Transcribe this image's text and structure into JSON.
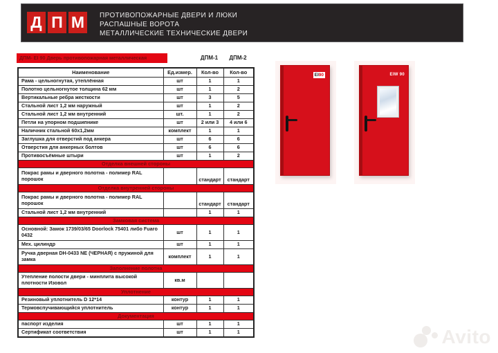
{
  "header": {
    "logo_letters": [
      "Д",
      "П",
      "М"
    ],
    "tagline_lines": [
      "ПРОТИВОПОЖАРНЫЕ ДВЕРИ И ЛЮКИ",
      "РАСПАШНЫЕ ВОРОТА",
      "МЕТАЛЛИЧЕСКИЕ ТЕХНИЧЕСКИЕ ДВЕРИ"
    ]
  },
  "title": {
    "text": "ДПМ- EI 90  Дверь противопожарная металлическая",
    "variant_labels": [
      "ДПМ-1",
      "ДПМ-2"
    ]
  },
  "table": {
    "columns": [
      "Наименование",
      "Ед.измер.",
      "Кол-во",
      "Кол-во"
    ],
    "rows": [
      {
        "type": "item",
        "name": "Рама - цельногнутая, утеплённая",
        "unit": "шт",
        "q1": "1",
        "q2": "1"
      },
      {
        "type": "item",
        "name": "Полотно цельногнутое толщина 62 мм",
        "unit": "шт",
        "q1": "1",
        "q2": "2"
      },
      {
        "type": "item",
        "name": "Вертикальные ребра жесткости",
        "unit": "шт",
        "q1": "3",
        "q2": "5"
      },
      {
        "type": "item",
        "name": "Стальной лист 1,2 мм наружный",
        "unit": "шт",
        "q1": "1",
        "q2": "2"
      },
      {
        "type": "item",
        "name": "Стальной лист 1,2 мм внутренний",
        "unit": "шт.",
        "q1": "1",
        "q2": "2"
      },
      {
        "type": "item",
        "name": "Петли на упорном подшипнике",
        "unit": "шт",
        "q1": "2 или 3",
        "q2": "4 или 6"
      },
      {
        "type": "item",
        "name": "Наличник стальной 60х1,2мм",
        "unit": "комплект",
        "q1": "1",
        "q2": "1"
      },
      {
        "type": "item",
        "name": "Заглушка для отверстий под анкера",
        "unit": "шт",
        "q1": "6",
        "q2": "6"
      },
      {
        "type": "item",
        "name": "Отверстия для анкерных болтов",
        "unit": "шт",
        "q1": "6",
        "q2": "6"
      },
      {
        "type": "item",
        "name": "Противосъёмные штыри",
        "unit": "шт",
        "q1": "1",
        "q2": "2"
      },
      {
        "type": "section",
        "label": "Отделка внешней стороны"
      },
      {
        "type": "item",
        "tall": true,
        "vb": true,
        "name": "Покрас рамы и дверного полотна - полимер RAL порошок",
        "unit": "",
        "q1": "стандарт",
        "q2": "стандарт"
      },
      {
        "type": "section",
        "label": "Отделка внутренней стороны"
      },
      {
        "type": "item",
        "tall": true,
        "vb": true,
        "name": "Покрас рамы и дверного полотна - полимер RAL порошок",
        "unit": "",
        "q1": "стандарт",
        "q2": "стандарт"
      },
      {
        "type": "item",
        "name": "Стальной лист 1,2 мм внутренний",
        "unit": "",
        "q1": "1",
        "q2": "1"
      },
      {
        "type": "section",
        "label": "Замковая система"
      },
      {
        "type": "item",
        "tall": true,
        "name": "Основной:  Замок 1739/03/65 Doorlock 75401 либо Fuaro 0432",
        "unit": "шт",
        "q1": "1",
        "q2": "1"
      },
      {
        "type": "item",
        "name": "Мех. цилиндр",
        "unit": "шт",
        "q1": "1",
        "q2": "1"
      },
      {
        "type": "item",
        "tall": true,
        "name": "Ручка дверная DH-0433 NE (ЧЕРНАЯ) с пружиной для замка",
        "unit": "комплект",
        "q1": "1",
        "q2": "1"
      },
      {
        "type": "section",
        "label": "Заполнение полотна"
      },
      {
        "type": "item",
        "tall": true,
        "name": "Утепление полости двери -  минплита высокой плотности Изовол",
        "unit": "кв.м",
        "q1": "",
        "q2": ""
      },
      {
        "type": "section",
        "label": "Уплотнение"
      },
      {
        "type": "item",
        "name": "Резиновый уплотнитель D 12*14",
        "unit": "контур",
        "q1": "1",
        "q2": "1"
      },
      {
        "type": "item",
        "name": "Термовспучивающийся уплотнитель",
        "unit": "контур",
        "q1": "1",
        "q2": "1"
      },
      {
        "type": "section",
        "label": "Документация"
      },
      {
        "type": "item",
        "name": "паспорт изделия",
        "unit": "шт",
        "q1": "1",
        "q2": "1"
      },
      {
        "type": "item",
        "name": "Сертификат соответствия",
        "unit": "шт",
        "q1": "1",
        "q2": "1"
      }
    ]
  },
  "doors": [
    {
      "badge_prefix": "EI",
      "badge_suffix": "90"
    },
    {
      "label": "EIW 90"
    }
  ],
  "watermark": {
    "text": "Avito"
  },
  "colors": {
    "accent_red": "#e30613",
    "band_text_red": "#7c0b0e",
    "door_red": "#d6101b",
    "header_dark": "#272324"
  }
}
